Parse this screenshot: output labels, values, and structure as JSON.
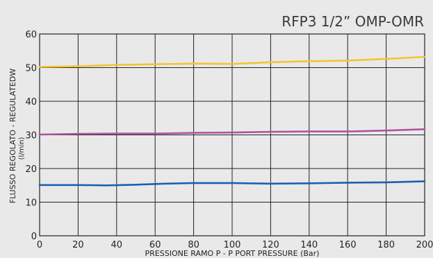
{
  "chart_data": {
    "type": "line",
    "title": "RFP3 1/2” OMP-OMR",
    "xlabel": "PRESSIONE RAMO P - P PORT PRESSURE (Bar)",
    "ylabel": "FLUSSO REGOLATO - REGULATEDW",
    "ylabel_unit": "(l/min)",
    "xlim": [
      0,
      200
    ],
    "ylim": [
      0,
      60
    ],
    "x_ticks": [
      0,
      20,
      40,
      60,
      80,
      100,
      120,
      140,
      160,
      180,
      200
    ],
    "y_ticks": [
      0,
      10,
      20,
      30,
      40,
      50,
      60
    ],
    "grid": true,
    "series": [
      {
        "color": "#f4c430",
        "points": [
          [
            0,
            50.2
          ],
          [
            20,
            50.4
          ],
          [
            40,
            50.8
          ],
          [
            60,
            51.0
          ],
          [
            80,
            51.2
          ],
          [
            100,
            51.1
          ],
          [
            120,
            51.6
          ],
          [
            140,
            51.9
          ],
          [
            160,
            52.1
          ],
          [
            180,
            52.6
          ],
          [
            200,
            53.2
          ]
        ]
      },
      {
        "color": "#b0549a",
        "points": [
          [
            0,
            30.1
          ],
          [
            20,
            30.3
          ],
          [
            40,
            30.4
          ],
          [
            60,
            30.4
          ],
          [
            80,
            30.6
          ],
          [
            100,
            30.7
          ],
          [
            120,
            30.9
          ],
          [
            140,
            31.0
          ],
          [
            160,
            31.0
          ],
          [
            180,
            31.3
          ],
          [
            200,
            31.7
          ]
        ]
      },
      {
        "color": "#1f5fae",
        "points": [
          [
            0,
            15.1
          ],
          [
            20,
            15.1
          ],
          [
            35,
            15.0
          ],
          [
            50,
            15.2
          ],
          [
            65,
            15.5
          ],
          [
            80,
            15.7
          ],
          [
            100,
            15.7
          ],
          [
            120,
            15.5
          ],
          [
            140,
            15.6
          ],
          [
            160,
            15.8
          ],
          [
            180,
            15.9
          ],
          [
            200,
            16.2
          ]
        ]
      }
    ]
  }
}
